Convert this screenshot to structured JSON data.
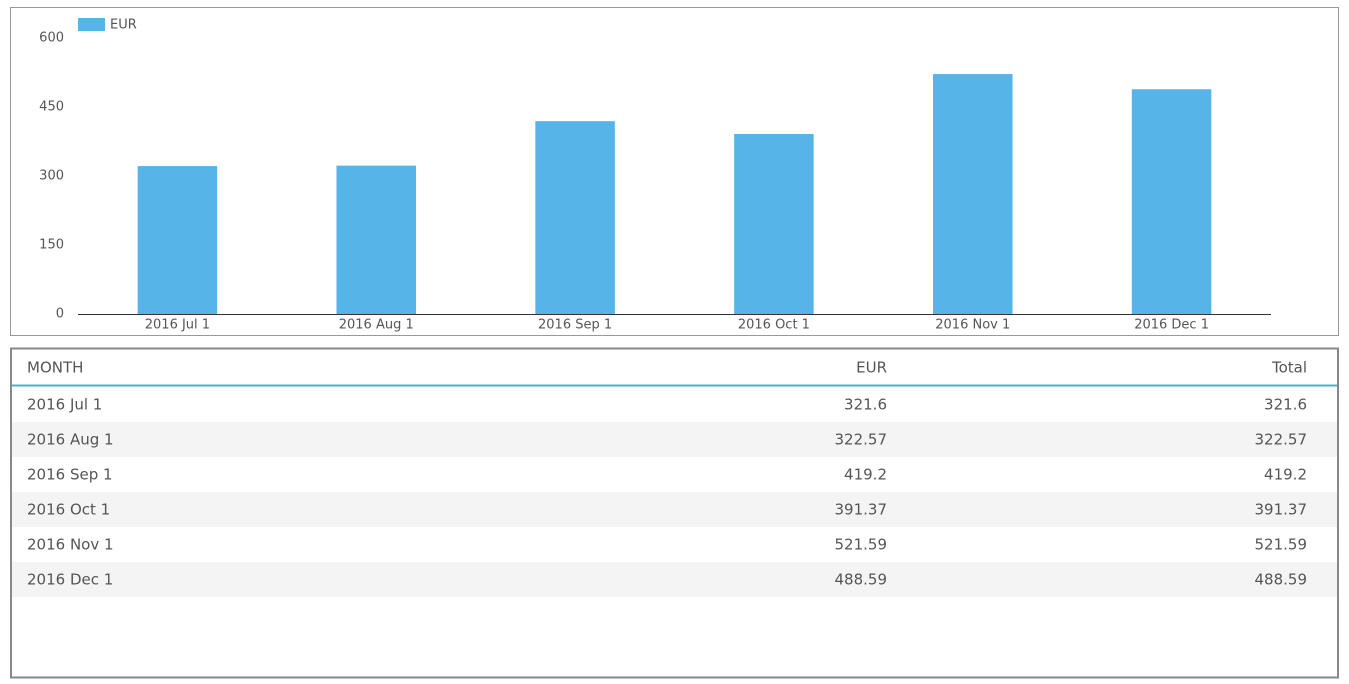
{
  "chart_data": {
    "type": "bar",
    "categories": [
      "2016 Jul 1",
      "2016 Aug 1",
      "2016 Sep 1",
      "2016 Oct 1",
      "2016 Nov 1",
      "2016 Dec 1"
    ],
    "series": [
      {
        "name": "EUR",
        "color": "#56b4e9",
        "values": [
          321.6,
          322.57,
          419.2,
          391.37,
          521.59,
          488.59
        ]
      }
    ],
    "ylim": [
      0,
      600
    ],
    "yticks": [
      0,
      150,
      300,
      450,
      600
    ],
    "grid": false,
    "legend": "top-left"
  },
  "table": {
    "header": [
      "MONTH",
      "EUR",
      "Total"
    ],
    "rows": [
      [
        "2016 Jul 1",
        321.6,
        321.6
      ],
      [
        "2016 Aug 1",
        322.57,
        322.57
      ],
      [
        "2016 Sep 1",
        419.2,
        419.2
      ],
      [
        "2016 Oct 1",
        391.37,
        391.37
      ],
      [
        "2016 Nov 1",
        521.59,
        521.59
      ],
      [
        "2016 Dec 1",
        488.59,
        488.59
      ]
    ]
  }
}
